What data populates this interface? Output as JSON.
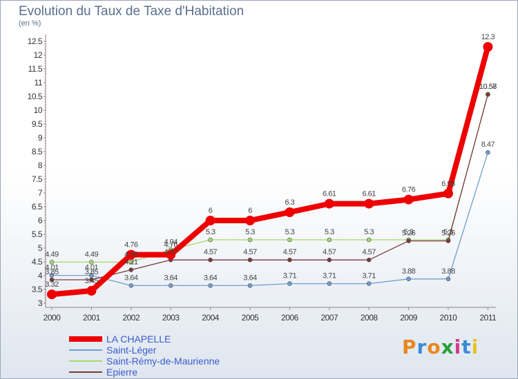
{
  "chart_data": {
    "type": "line",
    "title": "Evolution du Taux de Taxe d'Habitation",
    "ylabel": "(en %)",
    "xlabel": "",
    "categories": [
      "2000",
      "2001",
      "2002",
      "2003",
      "2004",
      "2005",
      "2006",
      "2007",
      "2008",
      "2009",
      "2010",
      "2011"
    ],
    "ylim": [
      3,
      12.5
    ],
    "yticks": [
      "3",
      "3.5",
      "4",
      "4.5",
      "5",
      "5.5",
      "6",
      "6.5",
      "7",
      "7.5",
      "8",
      "8.5",
      "9",
      "9.5",
      "10",
      "10.5",
      "11",
      "11.5",
      "12",
      "12.5"
    ],
    "grid": false,
    "legend_position": "bottom-left",
    "series": [
      {
        "name": "LA CHAPELLE",
        "color": "#ee0000",
        "emphasis": true,
        "values": [
          3.32,
          3.45,
          4.76,
          4.76,
          6,
          6,
          6.3,
          6.61,
          6.61,
          6.76,
          6.98,
          12.3
        ],
        "labels": [
          "3.32",
          "3.45",
          "4.76",
          "4.76",
          "6",
          "6",
          "6.3",
          "6.61",
          "6.61",
          "6.76",
          "6.98",
          "12.3"
        ]
      },
      {
        "name": "Saint-Léger",
        "color": "#6f9dcc",
        "emphasis": false,
        "values": [
          4.01,
          4.01,
          3.64,
          3.64,
          3.64,
          3.64,
          3.71,
          3.71,
          3.71,
          3.88,
          3.88,
          8.47
        ],
        "labels": [
          "4.01",
          "4.01",
          "3.64",
          "3.64",
          "3.64",
          "3.64",
          "3.71",
          "3.71",
          "3.71",
          "3.88",
          "3.88",
          "8.47"
        ]
      },
      {
        "name": "Saint-Rémy-de-Maurienne",
        "color": "#a6d86d",
        "emphasis": false,
        "values": [
          4.49,
          4.49,
          4.49,
          4.94,
          5.3,
          5.3,
          5.3,
          5.3,
          5.3,
          5.3,
          5.3,
          10.57
        ],
        "labels": [
          "4.49",
          "4.49",
          "4.49",
          "4.94",
          "5.3",
          "5.3",
          "5.3",
          "5.3",
          "5.3",
          "5.3",
          "5.3",
          "10.57"
        ]
      },
      {
        "name": "Epierre",
        "color": "#7a3a3a",
        "emphasis": false,
        "values": [
          3.85,
          3.85,
          4.21,
          4.57,
          4.57,
          4.57,
          4.57,
          4.57,
          4.57,
          5.26,
          5.26,
          10.58
        ],
        "labels": [
          "3.85",
          "3.85",
          "4.21",
          "4.57",
          "4.57",
          "4.57",
          "4.57",
          "4.57",
          "4.57",
          "5.26",
          "5.26",
          "10.58"
        ]
      }
    ]
  },
  "logo": {
    "letters": [
      "P",
      "r",
      "o",
      "x",
      "i",
      "t",
      "i"
    ],
    "colors": [
      "#e8871e",
      "#3a8bd6",
      "#e8871e",
      "#2a9f3a",
      "#d23b8a",
      "#3a8bd6",
      "#e8c21e"
    ]
  }
}
